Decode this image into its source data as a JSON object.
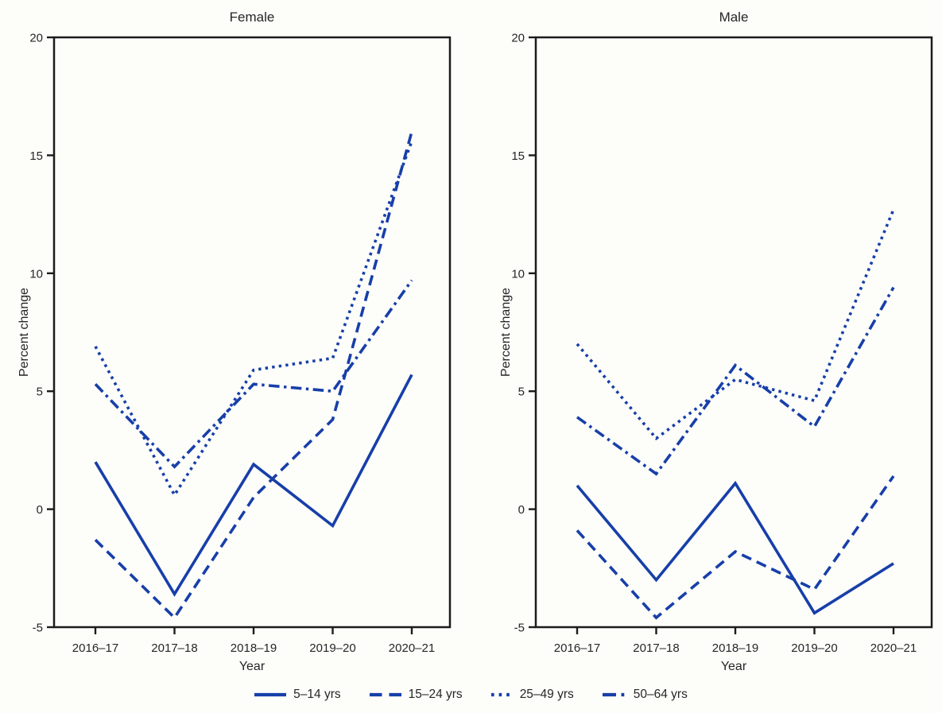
{
  "figure": {
    "background_color": "#fdfdfa",
    "line_color": "#173fa9",
    "axis_color": "#1c1c1c",
    "text_color": "#262626"
  },
  "chart_data": [
    {
      "type": "line",
      "title": "Female",
      "xlabel": "Year",
      "ylabel": "Percent change",
      "ylim": [
        -5,
        20
      ],
      "yticks": [
        -5,
        0,
        5,
        10,
        15,
        20
      ],
      "grid": false,
      "categories": [
        "2016–17",
        "2017–18",
        "2018–19",
        "2019–20",
        "2020–21"
      ],
      "series": [
        {
          "name": "5–14 yrs",
          "style": "solid",
          "values": [
            2.0,
            -3.6,
            1.9,
            -0.7,
            5.7
          ]
        },
        {
          "name": "15–24 yrs",
          "style": "dashed",
          "values": [
            -1.3,
            -4.6,
            0.5,
            3.8,
            16.0
          ]
        },
        {
          "name": "25–49 yrs",
          "style": "dotted",
          "values": [
            6.9,
            0.6,
            5.9,
            6.4,
            15.6
          ]
        },
        {
          "name": "50–64 yrs",
          "style": "dashdot",
          "values": [
            5.3,
            1.8,
            5.3,
            5.0,
            9.7
          ]
        }
      ]
    },
    {
      "type": "line",
      "title": "Male",
      "xlabel": "Year",
      "ylabel": "Percent change",
      "ylim": [
        -5,
        20
      ],
      "yticks": [
        -5,
        0,
        5,
        10,
        15,
        20
      ],
      "grid": false,
      "categories": [
        "2016–17",
        "2017–18",
        "2018–19",
        "2019–20",
        "2020–21"
      ],
      "series": [
        {
          "name": "5–14 yrs",
          "style": "solid",
          "values": [
            1.0,
            -3.0,
            1.1,
            -4.4,
            -2.3
          ]
        },
        {
          "name": "15–24 yrs",
          "style": "dashed",
          "values": [
            -0.9,
            -4.6,
            -1.8,
            -3.4,
            1.4
          ]
        },
        {
          "name": "25–49 yrs",
          "style": "dotted",
          "values": [
            7.0,
            3.0,
            5.5,
            4.6,
            12.7
          ]
        },
        {
          "name": "50–64 yrs",
          "style": "dashdot",
          "values": [
            3.9,
            1.5,
            6.1,
            3.5,
            9.4
          ]
        }
      ]
    }
  ],
  "legend": {
    "items": [
      {
        "label": "5–14 yrs",
        "style": "solid"
      },
      {
        "label": "15–24 yrs",
        "style": "dashed"
      },
      {
        "label": "25–49 yrs",
        "style": "dotted"
      },
      {
        "label": "50–64 yrs",
        "style": "dashdot"
      }
    ]
  }
}
